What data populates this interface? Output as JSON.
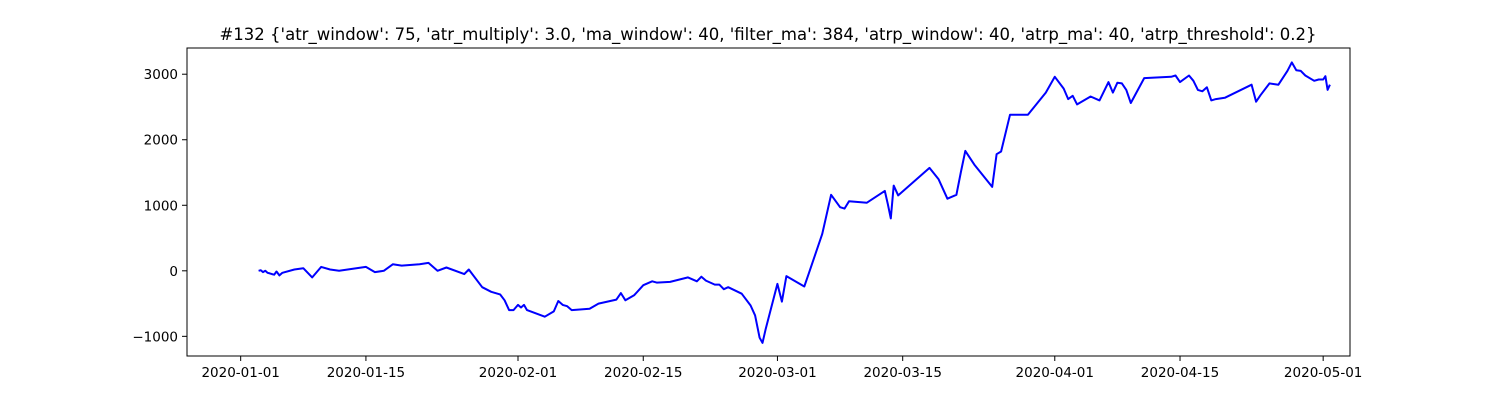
{
  "chart_data": {
    "type": "line",
    "title": "#132 {'atr_window': 75, 'atr_multiply': 3.0, 'ma_window': 40, 'filter_ma': 384, 'atrp_window': 40, 'atrp_ma': 40, 'atrp_threshold': 0.2}",
    "xlabel": "",
    "ylabel": "",
    "x_axis_type": "date",
    "xlim": [
      "2019-12-26",
      "2020-05-04"
    ],
    "ylim": [
      -1300,
      3400
    ],
    "x_ticks": [
      "2020-01-01",
      "2020-01-15",
      "2020-02-01",
      "2020-02-15",
      "2020-03-01",
      "2020-03-15",
      "2020-04-01",
      "2020-04-15",
      "2020-05-01"
    ],
    "y_ticks": [
      -1000,
      0,
      1000,
      2000,
      3000
    ],
    "grid": false,
    "legend": false,
    "series": [
      {
        "color": "#0000ff",
        "x": [
          "2020-01-03",
          "2020-01-03",
          "2020-01-03",
          "2020-01-03",
          "2020-01-04",
          "2020-01-04",
          "2020-01-04",
          "2020-01-04",
          "2020-01-05",
          "2020-01-05",
          "2020-01-05",
          "2020-01-07",
          "2020-01-08",
          "2020-01-09",
          "2020-01-10",
          "2020-01-11",
          "2020-01-12",
          "2020-01-15",
          "2020-01-16",
          "2020-01-17",
          "2020-01-18",
          "2020-01-19",
          "2020-01-21",
          "2020-01-22",
          "2020-01-23",
          "2020-01-24",
          "2020-01-26",
          "2020-01-26",
          "2020-01-28",
          "2020-01-29",
          "2020-01-30",
          "2020-01-30",
          "2020-01-31",
          "2020-01-31",
          "2020-02-01",
          "2020-02-01",
          "2020-02-01",
          "2020-02-02",
          "2020-02-04",
          "2020-02-05",
          "2020-02-05",
          "2020-02-06",
          "2020-02-06",
          "2020-02-07",
          "2020-02-09",
          "2020-02-10",
          "2020-02-12",
          "2020-02-12",
          "2020-02-13",
          "2020-02-14",
          "2020-02-15",
          "2020-02-16",
          "2020-02-16",
          "2020-02-18",
          "2020-02-20",
          "2020-02-21",
          "2020-02-21",
          "2020-02-22",
          "2020-02-23",
          "2020-02-23",
          "2020-02-24",
          "2020-02-24",
          "2020-02-26",
          "2020-02-27",
          "2020-02-27",
          "2020-02-28",
          "2020-02-28",
          "2020-02-28",
          "2020-03-01",
          "2020-03-01",
          "2020-03-02",
          "2020-03-04",
          "2020-03-04",
          "2020-03-06",
          "2020-03-07",
          "2020-03-08",
          "2020-03-08",
          "2020-03-09",
          "2020-03-11",
          "2020-03-13",
          "2020-03-13",
          "2020-03-13",
          "2020-03-14",
          "2020-03-14",
          "2020-03-18",
          "2020-03-19",
          "2020-03-20",
          "2020-03-21",
          "2020-03-21",
          "2020-03-22",
          "2020-03-23",
          "2020-03-25",
          "2020-03-25",
          "2020-03-26",
          "2020-03-27",
          "2020-03-29",
          "2020-03-31",
          "2020-04-01",
          "2020-04-02",
          "2020-04-02",
          "2020-04-03",
          "2020-04-03",
          "2020-04-05",
          "2020-04-06",
          "2020-04-07",
          "2020-04-07",
          "2020-04-08",
          "2020-04-08",
          "2020-04-09",
          "2020-04-09",
          "2020-04-11",
          "2020-04-14",
          "2020-04-14",
          "2020-04-15",
          "2020-04-16",
          "2020-04-16",
          "2020-04-17",
          "2020-04-17",
          "2020-04-18",
          "2020-04-18",
          "2020-04-19",
          "2020-04-20",
          "2020-04-23",
          "2020-04-23",
          "2020-04-24",
          "2020-04-25",
          "2020-04-26",
          "2020-04-27",
          "2020-04-27",
          "2020-04-28",
          "2020-04-28",
          "2020-04-29",
          "2020-04-30",
          "2020-04-30",
          "2020-05-01",
          "2020-05-01",
          "2020-05-01",
          "2020-05-01"
        ],
        "y": [
          0,
          10,
          -20,
          0,
          -30,
          -40,
          -50,
          -60,
          -10,
          -70,
          -30,
          20,
          40,
          -100,
          60,
          20,
          0,
          60,
          -20,
          0,
          100,
          80,
          100,
          120,
          0,
          50,
          -50,
          20,
          -250,
          -320,
          -360,
          -450,
          -600,
          -600,
          -520,
          -560,
          -520,
          -600,
          -700,
          -620,
          -460,
          -520,
          -540,
          -600,
          -580,
          -500,
          -440,
          -340,
          -450,
          -370,
          -220,
          -160,
          -180,
          -170,
          -100,
          -160,
          -90,
          -150,
          -210,
          -210,
          -280,
          -250,
          -350,
          -530,
          -680,
          -1020,
          -1100,
          -900,
          -200,
          -470,
          -80,
          -240,
          -40,
          560,
          1160,
          970,
          950,
          1060,
          1040,
          1220,
          1020,
          800,
          1300,
          1150,
          1570,
          1400,
          1100,
          1160,
          1500,
          1830,
          1620,
          1280,
          1780,
          1820,
          2380,
          2380,
          2720,
          2960,
          2780,
          2620,
          2670,
          2540,
          2660,
          2600,
          2880,
          2720,
          2870,
          2860,
          2760,
          2560,
          2940,
          2960,
          2980,
          2880,
          2980,
          2900,
          2760,
          2740,
          2800,
          2600,
          2620,
          2640,
          2840,
          2580,
          2680,
          2860,
          2840,
          3050,
          3180,
          3060,
          3050,
          2980,
          2900,
          2920,
          2920,
          2970,
          2760,
          2840
        ]
      }
    ]
  }
}
